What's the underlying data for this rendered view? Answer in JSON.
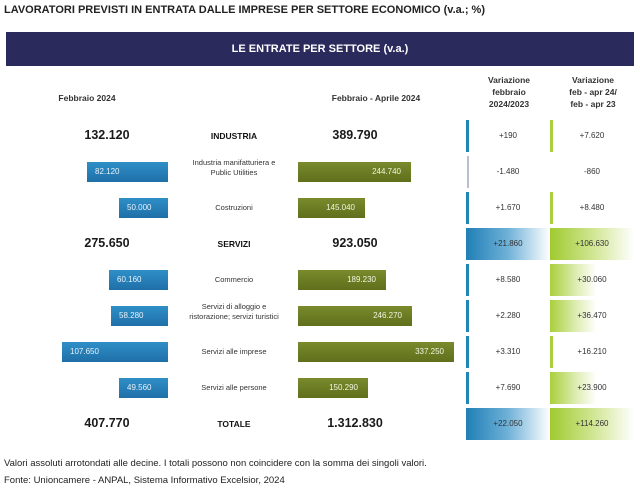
{
  "title": "LAVORATORI PREVISTI IN ENTRATA DALLE IMPRESE PER SETTORE ECONOMICO (v.a.; %)",
  "banner": "LE ENTRATE PER SETTORE (v.a.)",
  "headers": {
    "left": "Febbraio 2024",
    "right": "Febbraio  - Aprile 2024",
    "var1": [
      "Variazione",
      "febbraio",
      "2024/2023"
    ],
    "var2": [
      "Variazione",
      "feb - apr 24/",
      "feb - apr 23"
    ]
  },
  "chart_data": {
    "type": "bar",
    "categories": [
      "INDUSTRIA",
      "Industria manifatturiera e Public Utilities",
      "Costruzioni",
      "SERVIZI",
      "Commercio",
      "Servizi di alloggio e ristorazione; servizi turistici",
      "Servizi alle imprese",
      "Servizi alle persone",
      "TOTALE"
    ],
    "rows": [
      {
        "label": "INDUSTRIA",
        "kind": "total",
        "feb": "132.120",
        "feb_apr": "389.790",
        "var1": "+190",
        "var2": "+7.620",
        "v1": 190,
        "v2": 7620
      },
      {
        "label": "Industria manifatturiera e Public Utilities",
        "kind": "bar",
        "feb": "82.120",
        "feb_apr": "244.740",
        "fv": 82120,
        "fav": 244740,
        "var1": "-1.480",
        "var2": "-860",
        "v1": -1480,
        "v2": -860
      },
      {
        "label": "Costruzioni",
        "kind": "bar",
        "feb": "50.000",
        "feb_apr": "145.040",
        "fv": 50000,
        "fav": 145040,
        "var1": "+1.670",
        "var2": "+8.480",
        "v1": 1670,
        "v2": 8480
      },
      {
        "label": "SERVIZI",
        "kind": "total",
        "feb": "275.650",
        "feb_apr": "923.050",
        "var1": "+21.860",
        "var2": "+106.630",
        "v1": 21860,
        "v2": 106630
      },
      {
        "label": "Commercio",
        "kind": "bar",
        "feb": "60.160",
        "feb_apr": "189.230",
        "fv": 60160,
        "fav": 189230,
        "var1": "+8.580",
        "var2": "+30.060",
        "v1": 8580,
        "v2": 30060
      },
      {
        "label": "Servizi di alloggio e ristorazione; servizi turistici",
        "kind": "bar",
        "feb": "58.280",
        "feb_apr": "246.270",
        "fv": 58280,
        "fav": 246270,
        "var1": "+2.280",
        "var2": "+36.470",
        "v1": 2280,
        "v2": 36470
      },
      {
        "label": "Servizi alle imprese",
        "kind": "bar",
        "feb": "107.650",
        "feb_apr": "337.250",
        "fv": 107650,
        "fav": 337250,
        "var1": "+3.310",
        "var2": "+16.210",
        "v1": 3310,
        "v2": 16210
      },
      {
        "label": "Servizi alle persone",
        "kind": "bar",
        "feb": "49.560",
        "feb_apr": "150.290",
        "fv": 49560,
        "fav": 150290,
        "var1": "+7.690",
        "var2": "+23.900",
        "v1": 7690,
        "v2": 23900
      },
      {
        "label": "TOTALE",
        "kind": "total",
        "feb": "407.770",
        "feb_apr": "1.312.830",
        "var1": "+22.050",
        "var2": "+114.260",
        "v1": 22050,
        "v2": 114260
      }
    ]
  },
  "footnotes": [
    "Valori assoluti arrotondati alle decine. I totali possono non coincidere con la somma dei singoli valori.",
    "Fonte: Unioncamere - ANPAL, Sistema Informativo Excelsior, 2024"
  ],
  "colors": {
    "banner": "#2b2a5c",
    "left_bar": "#1f6fa8",
    "right_bar": "#5f6f1c",
    "var1": "#1f87b8",
    "var2": "#a9cf3c"
  }
}
